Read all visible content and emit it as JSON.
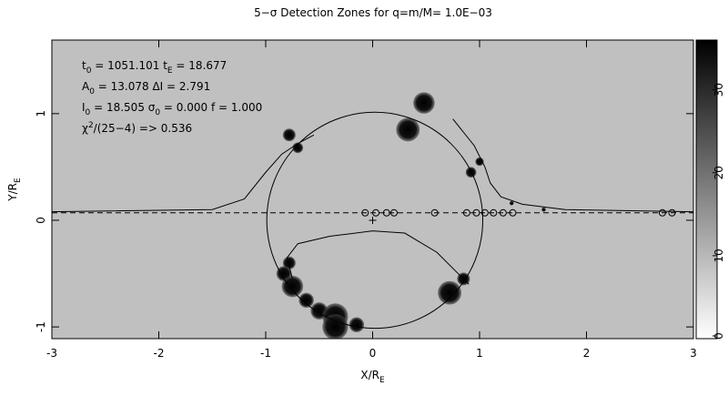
{
  "chart_data": {
    "type": "map",
    "title": "5−σ Detection Zones for q=m/M= 1.0E−03",
    "xlabel": {
      "text": "X/R",
      "sub": "E"
    },
    "ylabel": {
      "text": "Y/R",
      "sub": "E"
    },
    "xlim": [
      -3,
      3
    ],
    "xticks": [
      -3,
      -2,
      -1,
      0,
      1,
      2,
      3
    ],
    "ylim": [
      -1.11,
      1.69
    ],
    "yticks": [
      -1,
      0,
      1
    ],
    "background": "#c0c0c0",
    "colorbar": {
      "clim": [
        0,
        36
      ],
      "ticks": [
        0,
        10,
        20,
        30
      ],
      "colors": [
        "#ffffff",
        "#000000"
      ]
    },
    "annotation": [
      [
        {
          "t": "t"
        },
        {
          "s": "0"
        },
        {
          "t": " = 1051.101  t"
        },
        {
          "s": "E"
        },
        {
          "t": " = 18.677"
        }
      ],
      [
        {
          "t": "A"
        },
        {
          "s": "0"
        },
        {
          "t": " = 13.078  ΔI = 2.791"
        }
      ],
      [
        {
          "t": "I"
        },
        {
          "s": "0"
        },
        {
          "t": " = 18.505  σ"
        },
        {
          "s": "0"
        },
        {
          "t": " = 0.000 f = 1.000"
        }
      ],
      [
        {
          "t": "χ"
        },
        {
          "p": "2"
        },
        {
          "t": "/(25−4) => 0.536"
        }
      ]
    ],
    "trajectory_y": 0.07,
    "lens": {
      "x": 0,
      "y": 0
    },
    "ring": {
      "x": 0.02,
      "y": 0,
      "r": 1.01
    },
    "points": {
      "x": [
        -0.07,
        0.03,
        0.13,
        0.2,
        0.58,
        0.88,
        0.97,
        1.05,
        1.13,
        1.22,
        1.31,
        2.71,
        2.8
      ],
      "y": [
        0.07,
        0.07,
        0.07,
        0.07,
        0.07,
        0.07,
        0.07,
        0.07,
        0.07,
        0.07,
        0.07,
        0.07,
        0.07
      ]
    },
    "zones": {
      "x": [
        0.48,
        0.33,
        -0.78,
        -0.7,
        1.0,
        0.92,
        -0.78,
        -0.83,
        -0.75,
        -0.62,
        -0.5,
        -0.35,
        -0.35,
        -0.15,
        0.72,
        0.85,
        1.3,
        1.6
      ],
      "y": [
        1.1,
        0.85,
        0.8,
        0.68,
        0.55,
        0.45,
        -0.4,
        -0.5,
        -0.62,
        -0.75,
        -0.85,
        -0.9,
        -1.0,
        -0.98,
        -0.68,
        -0.55,
        0.16,
        0.1
      ],
      "r": [
        0.1,
        0.11,
        0.06,
        0.05,
        0.04,
        0.05,
        0.06,
        0.07,
        0.1,
        0.07,
        0.08,
        0.12,
        0.12,
        0.07,
        0.11,
        0.06,
        0.02,
        0.02
      ]
    },
    "curves": [
      {
        "x": [
          -3,
          -1.5,
          -1.2,
          -1.0,
          -0.85,
          -0.7,
          -0.55
        ],
        "y": [
          0.08,
          0.1,
          0.2,
          0.45,
          0.62,
          0.72,
          0.8
        ]
      },
      {
        "x": [
          0.75,
          0.95,
          1.05,
          1.1,
          1.2,
          1.4,
          1.8,
          3
        ],
        "y": [
          0.95,
          0.7,
          0.5,
          0.35,
          0.22,
          0.15,
          0.1,
          0.08
        ]
      },
      {
        "x": [
          -0.75,
          -0.8,
          -0.7,
          -0.4,
          0,
          0.3,
          0.6,
          0.8,
          0.9
        ],
        "y": [
          -0.55,
          -0.35,
          -0.22,
          -0.15,
          -0.1,
          -0.12,
          -0.3,
          -0.5,
          -0.6
        ]
      }
    ]
  }
}
